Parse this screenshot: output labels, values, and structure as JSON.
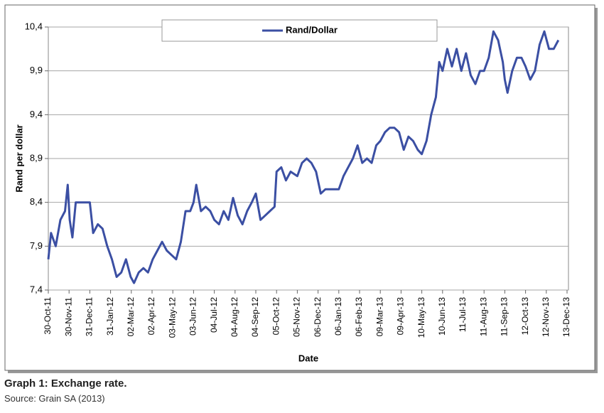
{
  "chart_data": {
    "type": "line",
    "y_label": "Rand per dollar",
    "x_label": "Date",
    "legend": "top",
    "grid": true,
    "ylim": [
      7.4,
      10.4
    ],
    "yticks": [
      {
        "value": 7.4,
        "label": "7,4"
      },
      {
        "value": 7.9,
        "label": "7,9"
      },
      {
        "value": 8.4,
        "label": "8,4"
      },
      {
        "value": 8.9,
        "label": "8,9"
      },
      {
        "value": 9.4,
        "label": "9,4"
      },
      {
        "value": 9.9,
        "label": "9,9"
      },
      {
        "value": 10.4,
        "label": "10,4"
      }
    ],
    "xlim": [
      "2011-10-30",
      "2013-12-13"
    ],
    "xticks": [
      {
        "value": "2011-10-30",
        "label": "30-Oct-11"
      },
      {
        "value": "2011-11-30",
        "label": "30-Nov-11"
      },
      {
        "value": "2011-12-31",
        "label": "31-Dec-11"
      },
      {
        "value": "2012-01-31",
        "label": "31-Jan-12"
      },
      {
        "value": "2012-03-02",
        "label": "02-Mar-12"
      },
      {
        "value": "2012-04-02",
        "label": "02-Apr-12"
      },
      {
        "value": "2012-05-03",
        "label": "03-May-12"
      },
      {
        "value": "2012-06-03",
        "label": "03-Jun-12"
      },
      {
        "value": "2012-07-04",
        "label": "04-Jul-12"
      },
      {
        "value": "2012-08-04",
        "label": "04-Aug-12"
      },
      {
        "value": "2012-09-04",
        "label": "04-Sep-12"
      },
      {
        "value": "2012-10-05",
        "label": "05-Oct-12"
      },
      {
        "value": "2012-11-05",
        "label": "05-Nov-12"
      },
      {
        "value": "2012-12-06",
        "label": "06-Dec-12"
      },
      {
        "value": "2013-01-06",
        "label": "06-Jan-13"
      },
      {
        "value": "2013-02-06",
        "label": "06-Feb-13"
      },
      {
        "value": "2013-03-09",
        "label": "09-Mar-13"
      },
      {
        "value": "2013-04-09",
        "label": "09-Apr-13"
      },
      {
        "value": "2013-05-10",
        "label": "10-May-13"
      },
      {
        "value": "2013-06-10",
        "label": "10-Jun-13"
      },
      {
        "value": "2013-07-11",
        "label": "11-Jul-13"
      },
      {
        "value": "2013-08-11",
        "label": "11-Aug-13"
      },
      {
        "value": "2013-09-11",
        "label": "11-Sep-13"
      },
      {
        "value": "2013-10-12",
        "label": "12-Oct-13"
      },
      {
        "value": "2013-11-12",
        "label": "12-Nov-13"
      },
      {
        "value": "2013-12-13",
        "label": "13-Dec-13"
      }
    ],
    "x": [
      "2011-10-30",
      "2011-11-03",
      "2011-11-10",
      "2011-11-17",
      "2011-11-24",
      "2011-11-28",
      "2011-12-01",
      "2011-12-05",
      "2011-12-10",
      "2011-12-31",
      "2012-01-05",
      "2012-01-12",
      "2012-01-19",
      "2012-01-26",
      "2012-02-02",
      "2012-02-09",
      "2012-02-16",
      "2012-02-23",
      "2012-03-01",
      "2012-03-06",
      "2012-03-13",
      "2012-03-20",
      "2012-03-27",
      "2012-04-03",
      "2012-04-10",
      "2012-04-17",
      "2012-04-24",
      "2012-05-01",
      "2012-05-08",
      "2012-05-15",
      "2012-05-22",
      "2012-05-29",
      "2012-06-03",
      "2012-06-07",
      "2012-06-14",
      "2012-06-21",
      "2012-06-28",
      "2012-07-04",
      "2012-07-11",
      "2012-07-18",
      "2012-07-25",
      "2012-08-01",
      "2012-08-08",
      "2012-08-15",
      "2012-08-22",
      "2012-08-29",
      "2012-09-04",
      "2012-09-11",
      "2012-09-18",
      "2012-09-25",
      "2012-10-02",
      "2012-10-05",
      "2012-10-12",
      "2012-10-19",
      "2012-10-26",
      "2012-11-05",
      "2012-11-12",
      "2012-11-19",
      "2012-11-26",
      "2012-12-03",
      "2012-12-10",
      "2012-12-17",
      "2012-12-24",
      "2013-01-06",
      "2013-01-13",
      "2013-01-20",
      "2013-01-27",
      "2013-02-03",
      "2013-02-10",
      "2013-02-17",
      "2013-02-24",
      "2013-03-03",
      "2013-03-09",
      "2013-03-16",
      "2013-03-23",
      "2013-03-30",
      "2013-04-06",
      "2013-04-13",
      "2013-04-20",
      "2013-04-27",
      "2013-05-04",
      "2013-05-10",
      "2013-05-17",
      "2013-05-24",
      "2013-05-31",
      "2013-06-05",
      "2013-06-10",
      "2013-06-17",
      "2013-06-24",
      "2013-07-01",
      "2013-07-08",
      "2013-07-15",
      "2013-07-22",
      "2013-07-29",
      "2013-08-05",
      "2013-08-11",
      "2013-08-18",
      "2013-08-25",
      "2013-09-01",
      "2013-09-08",
      "2013-09-11",
      "2013-09-15",
      "2013-09-22",
      "2013-09-29",
      "2013-10-06",
      "2013-10-12",
      "2013-10-19",
      "2013-10-26",
      "2013-11-02",
      "2013-11-09",
      "2013-11-16",
      "2013-11-23",
      "2013-11-30"
    ],
    "series": [
      {
        "name": "Rand/Dollar",
        "color": "#3b4fa3",
        "values": [
          7.75,
          8.05,
          7.9,
          8.2,
          8.3,
          8.6,
          8.2,
          8.0,
          8.4,
          8.4,
          8.05,
          8.15,
          8.1,
          7.9,
          7.75,
          7.55,
          7.6,
          7.75,
          7.55,
          7.48,
          7.6,
          7.65,
          7.6,
          7.75,
          7.85,
          7.95,
          7.85,
          7.8,
          7.75,
          7.95,
          8.3,
          8.3,
          8.4,
          8.6,
          8.3,
          8.35,
          8.3,
          8.2,
          8.15,
          8.3,
          8.2,
          8.45,
          8.25,
          8.15,
          8.3,
          8.4,
          8.5,
          8.2,
          8.25,
          8.3,
          8.35,
          8.75,
          8.8,
          8.65,
          8.75,
          8.7,
          8.85,
          8.9,
          8.85,
          8.75,
          8.5,
          8.55,
          8.55,
          8.55,
          8.7,
          8.8,
          8.9,
          9.05,
          8.85,
          8.9,
          8.85,
          9.05,
          9.1,
          9.2,
          9.25,
          9.25,
          9.2,
          9.0,
          9.15,
          9.1,
          9.0,
          8.95,
          9.1,
          9.4,
          9.6,
          10.0,
          9.9,
          10.15,
          9.95,
          10.15,
          9.9,
          10.1,
          9.85,
          9.75,
          9.9,
          9.9,
          10.05,
          10.35,
          10.25,
          10.0,
          9.8,
          9.65,
          9.9,
          10.05,
          10.05,
          9.95,
          9.8,
          9.9,
          10.2,
          10.35,
          10.15,
          10.15,
          10.25
        ]
      }
    ]
  },
  "caption": {
    "title": "Graph 1: Exchange rate.",
    "source": "Source: Grain SA (2013)"
  }
}
